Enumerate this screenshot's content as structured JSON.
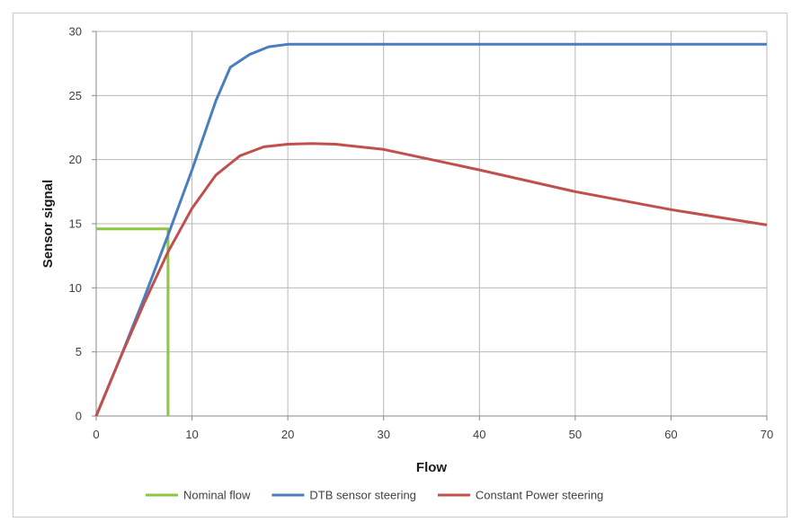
{
  "chart_data": {
    "type": "line",
    "title": "",
    "xlabel": "Flow",
    "ylabel": "Sensor signal",
    "xlim": [
      0,
      70
    ],
    "ylim": [
      0,
      30
    ],
    "xticks": [
      0,
      10,
      20,
      30,
      40,
      50,
      60,
      70
    ],
    "yticks": [
      0,
      5,
      10,
      15,
      20,
      25,
      30
    ],
    "grid": true,
    "legend_position": "bottom",
    "series": [
      {
        "name": "Nominal flow",
        "color": "#8dc63f",
        "points": [
          [
            7.5,
            0
          ],
          [
            7.5,
            14.6
          ],
          [
            0,
            14.6
          ]
        ]
      },
      {
        "name": "DTB sensor steering",
        "color": "#4a7ebf",
        "points": [
          [
            0,
            0
          ],
          [
            2.5,
            4.5
          ],
          [
            5,
            9.2
          ],
          [
            7.5,
            14.1
          ],
          [
            10,
            19.2
          ],
          [
            12.5,
            24.6
          ],
          [
            14,
            27.2
          ],
          [
            16,
            28.2
          ],
          [
            18,
            28.8
          ],
          [
            20,
            29.0
          ],
          [
            25,
            29.0
          ],
          [
            30,
            29.0
          ],
          [
            40,
            29.0
          ],
          [
            50,
            29.0
          ],
          [
            60,
            29.0
          ],
          [
            70,
            29.0
          ]
        ]
      },
      {
        "name": "Constant Power steering",
        "color": "#c0504d",
        "points": [
          [
            0,
            0
          ],
          [
            2.5,
            4.5
          ],
          [
            5,
            8.8
          ],
          [
            7.5,
            12.8
          ],
          [
            10,
            16.2
          ],
          [
            12.5,
            18.8
          ],
          [
            15,
            20.3
          ],
          [
            17.5,
            21.0
          ],
          [
            20,
            21.2
          ],
          [
            22.5,
            21.25
          ],
          [
            25,
            21.2
          ],
          [
            30,
            20.8
          ],
          [
            35,
            20.0
          ],
          [
            40,
            19.2
          ],
          [
            50,
            17.5
          ],
          [
            60,
            16.1
          ],
          [
            70,
            14.9
          ]
        ]
      }
    ]
  }
}
